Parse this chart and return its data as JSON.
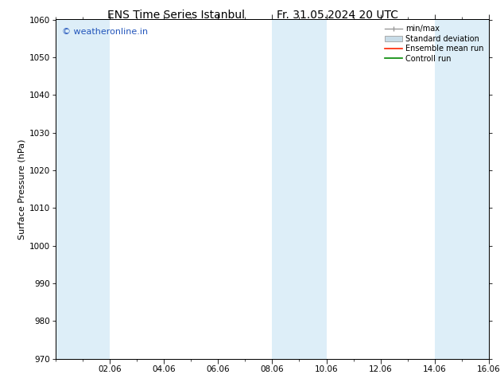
{
  "title_left": "ENS Time Series Istanbul",
  "title_right": "Fr. 31.05.2024 20 UTC",
  "ylabel": "Surface Pressure (hPa)",
  "ylim": [
    970,
    1060
  ],
  "yticks": [
    970,
    980,
    990,
    1000,
    1010,
    1020,
    1030,
    1040,
    1050,
    1060
  ],
  "x_min": 0,
  "x_max": 16,
  "xtick_major_positions": [
    2,
    4,
    6,
    8,
    10,
    12,
    14,
    16
  ],
  "xtick_major_labels": [
    "02.06",
    "04.06",
    "06.06",
    "08.06",
    "10.06",
    "12.06",
    "14.06",
    "16.06"
  ],
  "xtick_minor_positions": [
    0,
    1,
    2,
    3,
    4,
    5,
    6,
    7,
    8,
    9,
    10,
    11,
    12,
    13,
    14,
    15,
    16
  ],
  "shaded_bands": [
    {
      "x_start": 0,
      "x_end": 2,
      "color": "#ddeef8"
    },
    {
      "x_start": 8,
      "x_end": 10,
      "color": "#ddeef8"
    },
    {
      "x_start": 14,
      "x_end": 16,
      "color": "#ddeef8"
    }
  ],
  "watermark_text": "© weatheronline.in",
  "watermark_color": "#2255bb",
  "bg_color": "#ffffff",
  "legend_labels": [
    "min/max",
    "Standard deviation",
    "Ensemble mean run",
    "Controll run"
  ],
  "minmax_color": "#999999",
  "std_color": "#c8dce8",
  "ensemble_color": "#ff2200",
  "control_color": "#008800"
}
